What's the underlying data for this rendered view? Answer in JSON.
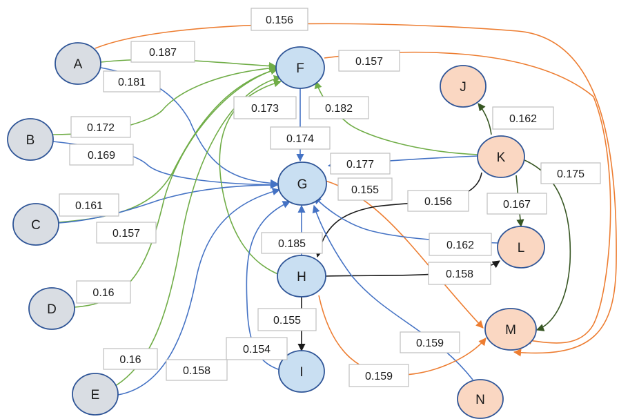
{
  "colors": {
    "blue": "#4472c4",
    "green": "#70ad47",
    "orange": "#ed7d31",
    "black": "#1a1a1a",
    "darkgreen": "#375623",
    "gray_fill": "#d9dde3",
    "blue_fill": "#c9dff2",
    "peach_fill": "#fad7c2",
    "node_stroke": "#2f5597"
  },
  "nodes": [
    {
      "id": "A",
      "label": "A",
      "fill": "gray"
    },
    {
      "id": "B",
      "label": "B",
      "fill": "gray"
    },
    {
      "id": "C",
      "label": "C",
      "fill": "gray"
    },
    {
      "id": "D",
      "label": "D",
      "fill": "gray"
    },
    {
      "id": "E",
      "label": "E",
      "fill": "gray"
    },
    {
      "id": "F",
      "label": "F",
      "fill": "blue"
    },
    {
      "id": "G",
      "label": "G",
      "fill": "blue"
    },
    {
      "id": "H",
      "label": "H",
      "fill": "blue"
    },
    {
      "id": "I",
      "label": "I",
      "fill": "blue"
    },
    {
      "id": "J",
      "label": "J",
      "fill": "peach"
    },
    {
      "id": "K",
      "label": "K",
      "fill": "peach"
    },
    {
      "id": "L",
      "label": "L",
      "fill": "peach"
    },
    {
      "id": "M",
      "label": "M",
      "fill": "peach"
    },
    {
      "id": "N",
      "label": "N",
      "fill": "peach"
    }
  ],
  "edges": [
    {
      "from": "A",
      "to": "M",
      "weight": "0.156",
      "color": "orange"
    },
    {
      "from": "A",
      "to": "F",
      "weight": "0.187",
      "color": "green"
    },
    {
      "from": "A",
      "to": "G",
      "weight": "0.181",
      "color": "blue"
    },
    {
      "from": "F",
      "to": "M",
      "weight": "0.157",
      "color": "orange"
    },
    {
      "from": "B",
      "to": "F",
      "weight": "0.172",
      "color": "green"
    },
    {
      "from": "B",
      "to": "G",
      "weight": "0.169",
      "color": "blue"
    },
    {
      "from": "H",
      "to": "F",
      "weight": "0.173",
      "color": "green"
    },
    {
      "from": "K",
      "to": "F",
      "weight": "0.182",
      "color": "green"
    },
    {
      "from": "F",
      "to": "G",
      "weight": "0.174",
      "color": "blue"
    },
    {
      "from": "K",
      "to": "J",
      "weight": "0.162",
      "color": "darkgreen"
    },
    {
      "from": "K",
      "to": "G",
      "weight": "0.177",
      "color": "blue"
    },
    {
      "from": "K",
      "to": "M",
      "weight": "0.175",
      "color": "darkgreen"
    },
    {
      "from": "C",
      "to": "F",
      "weight": "0.161",
      "color": "green"
    },
    {
      "from": "C",
      "to": "G",
      "weight": "0.157",
      "color": "blue"
    },
    {
      "from": "G",
      "to": "M",
      "weight": "0.155",
      "color": "orange"
    },
    {
      "from": "K",
      "to": "H",
      "weight": "0.156",
      "color": "black"
    },
    {
      "from": "K",
      "to": "L",
      "weight": "0.167",
      "color": "darkgreen"
    },
    {
      "from": "H",
      "to": "G",
      "weight": "0.185",
      "color": "blue"
    },
    {
      "from": "L",
      "to": "G",
      "weight": "0.162",
      "color": "blue"
    },
    {
      "from": "D",
      "to": "F",
      "weight": "0.16",
      "color": "green"
    },
    {
      "from": "H",
      "to": "L",
      "weight": "0.158",
      "color": "black"
    },
    {
      "from": "H",
      "to": "I",
      "weight": "0.155",
      "color": "black"
    },
    {
      "from": "N",
      "to": "G",
      "weight": "0.159",
      "color": "blue"
    },
    {
      "from": "I",
      "to": "G",
      "weight": "0.154",
      "color": "blue"
    },
    {
      "from": "E",
      "to": "F",
      "weight": "0.16",
      "color": "green"
    },
    {
      "from": "E",
      "to": "G",
      "weight": "0.158",
      "color": "blue"
    },
    {
      "from": "H",
      "to": "M",
      "weight": "0.159",
      "color": "orange"
    }
  ]
}
